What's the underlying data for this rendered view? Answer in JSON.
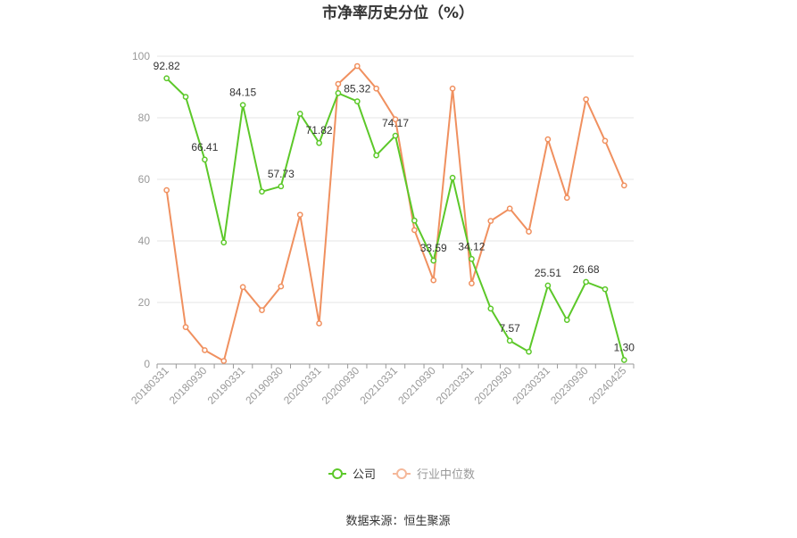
{
  "chart_data": {
    "type": "line",
    "title": "市净率历史分位（%）",
    "source": "数据来源：恒生聚源",
    "ylim": [
      0,
      100
    ],
    "yticks": [
      0,
      20,
      40,
      60,
      80,
      100
    ],
    "grid": true,
    "legend_position": "bottom",
    "x": [
      "20180331",
      "20180630",
      "20180930",
      "20181231",
      "20190331",
      "20190630",
      "20190930",
      "20191231",
      "20200331",
      "20200630",
      "20200930",
      "20201231",
      "20210331",
      "20210630",
      "20210930",
      "20211231",
      "20220331",
      "20220630",
      "20220930",
      "20221231",
      "20230331",
      "20230630",
      "20230930",
      "20231231",
      "20240425"
    ],
    "x_tick_labels": [
      "20180331",
      "20180930",
      "20190331",
      "20190930",
      "20200331",
      "20200930",
      "20210331",
      "20210930",
      "20220331",
      "20220930",
      "20230331",
      "20230930",
      "20240425"
    ],
    "series": [
      {
        "name": "公司",
        "color": "#5cc829",
        "values": [
          92.82,
          86.8,
          66.41,
          39.5,
          84.15,
          56.0,
          57.73,
          81.3,
          71.82,
          88.0,
          85.32,
          67.8,
          74.17,
          46.6,
          33.59,
          60.5,
          34.12,
          18.0,
          7.57,
          4.0,
          25.51,
          14.3,
          26.68,
          24.3,
          1.3
        ],
        "labels": [
          "92.82",
          "",
          "66.41",
          "",
          "84.15",
          "",
          "57.73",
          "",
          "71.82",
          "",
          "85.32",
          "",
          "74.17",
          "",
          "33.59",
          "",
          "34.12",
          "",
          "7.57",
          "",
          "25.51",
          "",
          "26.68",
          "",
          "1.30"
        ]
      },
      {
        "name": "行业中位数",
        "color": "#f0905f",
        "values": [
          56.5,
          12.0,
          4.5,
          1.0,
          25.0,
          17.5,
          25.2,
          48.5,
          13.2,
          91.0,
          96.8,
          89.5,
          79.5,
          43.5,
          27.2,
          89.5,
          26.2,
          46.5,
          50.5,
          43.0,
          73.0,
          54.0,
          86.0,
          72.5,
          58.0
        ]
      }
    ]
  }
}
